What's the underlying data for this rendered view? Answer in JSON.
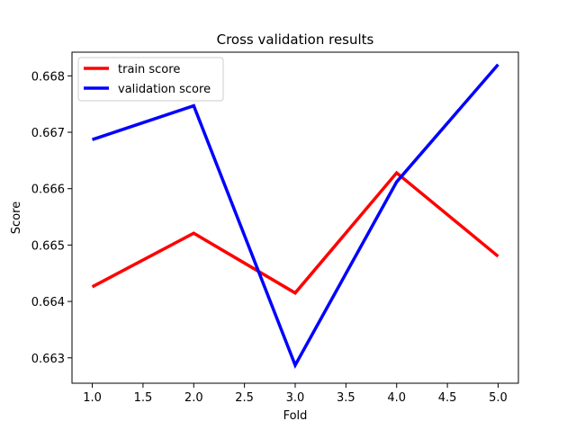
{
  "chart_data": {
    "type": "line",
    "title": "Cross validation results",
    "xlabel": "Fold",
    "ylabel": "Score",
    "xlim": [
      0.8,
      5.2
    ],
    "ylim": [
      0.66255,
      0.66842
    ],
    "xticks": [
      1.0,
      1.5,
      2.0,
      2.5,
      3.0,
      3.5,
      4.0,
      4.5,
      5.0
    ],
    "xtick_labels": [
      "1.0",
      "1.5",
      "2.0",
      "2.5",
      "3.0",
      "3.5",
      "4.0",
      "4.5",
      "5.0"
    ],
    "yticks": [
      0.663,
      0.664,
      0.665,
      0.666,
      0.667,
      0.668
    ],
    "ytick_labels": [
      "0.663",
      "0.664",
      "0.665",
      "0.666",
      "0.667",
      "0.668"
    ],
    "grid": false,
    "legend_position": "top-left",
    "x": [
      1,
      2,
      3,
      4,
      5
    ],
    "series": [
      {
        "name": "train score",
        "color": "#ff0000",
        "values": [
          0.66426,
          0.66521,
          0.66415,
          0.66628,
          0.6648
        ]
      },
      {
        "name": "validation score",
        "color": "#0000ff",
        "values": [
          0.66687,
          0.66747,
          0.66287,
          0.66612,
          0.6682
        ]
      }
    ]
  }
}
